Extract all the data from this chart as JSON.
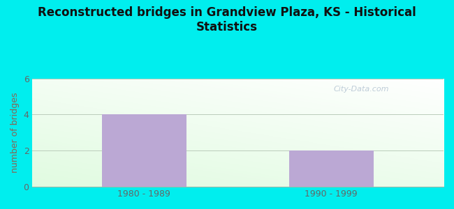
{
  "title": "Reconstructed bridges in Grandview Plaza, KS - Historical\nStatistics",
  "categories": [
    "1980 - 1989",
    "1990 - 1999"
  ],
  "values": [
    4,
    2
  ],
  "bar_color": "#BBA8D4",
  "ylabel": "number of bridges",
  "ylim": [
    0,
    6
  ],
  "yticks": [
    0,
    2,
    4,
    6
  ],
  "background_outer": "#00EEEE",
  "plot_bg_topleft": "#CCEECC",
  "plot_bg_topright": "#EEFFF0",
  "plot_bg_bottomleft": "#AADDAA",
  "watermark": "City-Data.com",
  "title_fontsize": 12,
  "ylabel_fontsize": 9,
  "tick_label_fontsize": 9,
  "bar_width": 0.45,
  "ylabel_color": "#886655",
  "tick_color": "#666666"
}
